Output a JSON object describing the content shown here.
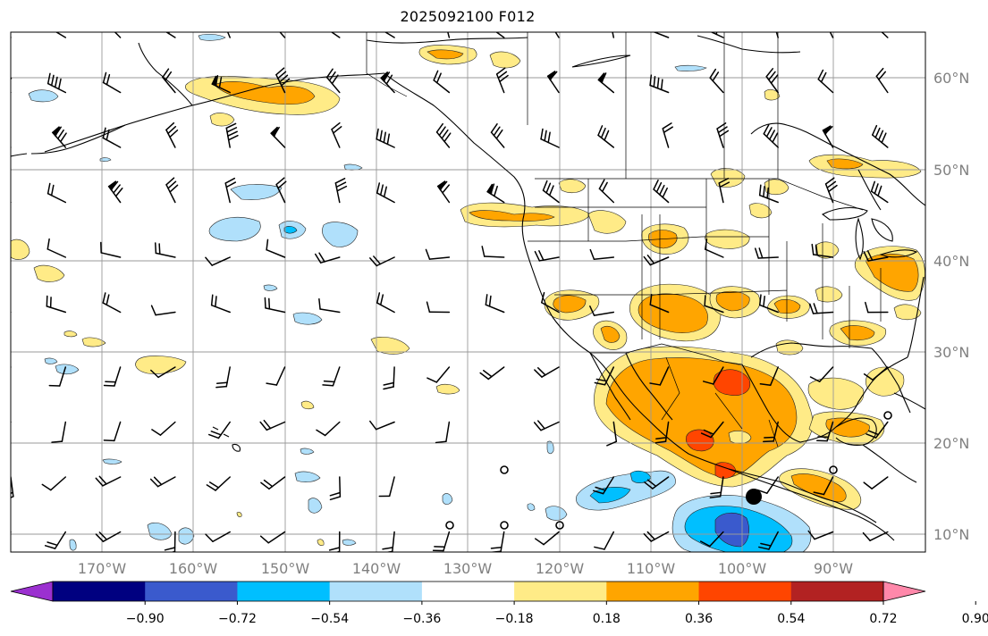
{
  "title": "2025092100 F012",
  "lon_ticks": [
    "170°W",
    "160°W",
    "150°W",
    "140°W",
    "130°W",
    "120°W",
    "110°W",
    "100°W",
    "90°W"
  ],
  "lat_ticks": [
    "10°N",
    "20°N",
    "30°N",
    "40°N",
    "50°N",
    "60°N"
  ],
  "colorbar": {
    "labels": [
      "−0.90",
      "−0.72",
      "−0.54",
      "−0.36",
      "−0.18",
      "0.18",
      "0.36",
      "0.54",
      "0.72",
      "0.90"
    ],
    "colors": [
      "#9b30d0",
      "#000080",
      "#3a5acd",
      "#00bfff",
      "#b0e0fb",
      "#ffffff",
      "#ffeb87",
      "#ffa500",
      "#ff4500",
      "#b22222",
      "#ff88aa"
    ]
  },
  "map": {
    "lon_range": [
      -180,
      -80
    ],
    "lat_range": [
      8,
      65
    ],
    "fill_colors": {
      "pos1": "#ffeb87",
      "pos2": "#ffa500",
      "pos3": "#ff4500",
      "neg1": "#b0e0fb",
      "neg2": "#00bfff",
      "neg3": "#3a5acd"
    }
  }
}
